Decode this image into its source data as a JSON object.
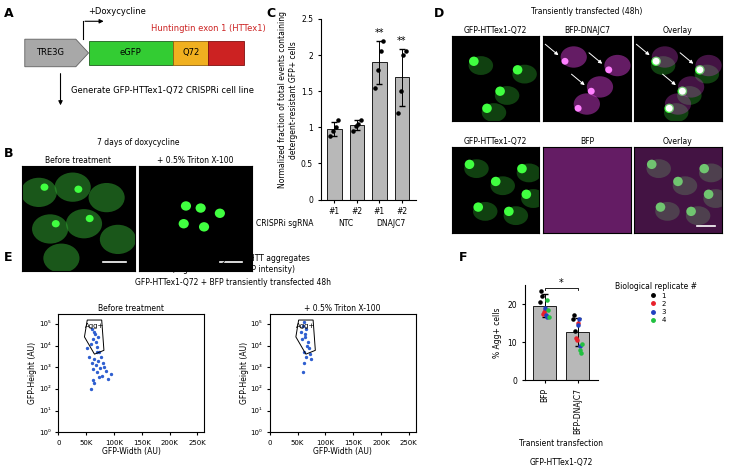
{
  "panel_labels": [
    "A",
    "B",
    "C",
    "D",
    "E",
    "F"
  ],
  "diagram": {
    "promoter": "TRE3G",
    "inducer": "+Doxycycline",
    "gene": "eGFP",
    "repeat": "Q72",
    "construct": "Huntingtin exon 1 (HTTex1)",
    "output": "Generate GFP-HTTex1-Q72 CRISPRi cell line"
  },
  "images_B": {
    "title": "7 days of doxycycline",
    "panels": [
      "Before treatment",
      "+ 0.5% Triton X-100"
    ]
  },
  "images_D": {
    "title": "Transiently transfected (48h)",
    "rows": [
      [
        "GFP-HTTex1-Q72",
        "BFP-DNAJC7",
        "Overlay"
      ],
      [
        "GFP-HTTex1-Q72",
        "BFP",
        "Overlay"
      ]
    ]
  },
  "panel_E": {
    "title": "Pulse-shape analysis of HTT aggregates",
    "subtitle": "(High and narrow GFP intensity)",
    "header": "GFP-HTTex1-Q72 + BFP transiently transfected 48h"
  },
  "chart_data": [
    {
      "type": "bar",
      "categories": [
        "#1",
        "#2",
        "#1",
        "#2"
      ],
      "group_labels": [
        "NTC",
        "NTC",
        "DNAJC7",
        "DNAJC7"
      ],
      "group_title": "CRISPRi sgRNA",
      "values": [
        0.98,
        1.03,
        1.9,
        1.69
      ],
      "errors": [
        0.1,
        0.07,
        0.3,
        0.4
      ],
      "points": [
        [
          0.88,
          0.95,
          1.0,
          1.1
        ],
        [
          0.95,
          1.02,
          1.05,
          1.1
        ],
        [
          1.55,
          1.8,
          2.05,
          2.2
        ],
        [
          1.2,
          1.5,
          2.0,
          2.05
        ]
      ],
      "significance": [
        null,
        null,
        "**",
        "**"
      ],
      "ylabel": "Normalized fraction of total events containing detergent-resistant GFP+ cells",
      "ylim": [
        0,
        2.5
      ],
      "yticks": [
        0,
        0.5,
        1,
        1.5,
        2,
        2.5
      ],
      "color": "#b8b8b8"
    },
    {
      "type": "scatter",
      "title": "Before treatment",
      "xlabel": "GFP-Width (AU)",
      "ylabel": "GFP-Height (AU)",
      "x": [
        55000,
        60000,
        62000,
        65000,
        68000,
        70000,
        72000,
        75000,
        78000,
        80000,
        85000,
        90000,
        58000,
        63000,
        66000,
        70000,
        74000,
        77000,
        82000,
        60000,
        64000,
        67000,
        71000,
        58000,
        62000,
        65000,
        69000,
        95000,
        52000,
        73000
      ],
      "y": [
        3000,
        1500,
        800,
        2500,
        1200,
        600,
        2000,
        900,
        400,
        1500,
        700,
        300,
        12000,
        20000,
        35000,
        9000,
        5000,
        3000,
        1000,
        60000,
        40000,
        15000,
        25000,
        100,
        250,
        180,
        5000,
        500,
        8000,
        350
      ],
      "color": "#2f5fd0",
      "log": "y",
      "gate": {
        "label": "Agg+",
        "x": [
          47000,
          52000,
          78000,
          82000,
          65000
        ],
        "y": [
          25000,
          150000,
          150000,
          6000,
          4000
        ]
      },
      "xlim": [
        0,
        262144
      ],
      "xticks": [
        0,
        {
          "value": 50000,
          "label": "50K"
        },
        {
          "value": 100000,
          "label": "100K"
        },
        {
          "value": 150000,
          "label": "150K"
        },
        {
          "value": 200000,
          "label": "200K"
        },
        {
          "value": 250000,
          "label": "250K"
        }
      ],
      "ylim": [
        1,
        300000
      ],
      "yticks": [
        {
          "value": 1,
          "label": "10⁰"
        },
        {
          "value": 10,
          "label": "10¹"
        },
        {
          "value": 100,
          "label": "10²"
        },
        {
          "value": 1000,
          "label": "10³"
        },
        {
          "value": 10000,
          "label": "10⁴"
        },
        {
          "value": 100000,
          "label": "10⁵"
        }
      ]
    },
    {
      "type": "scatter",
      "title": "+ 0.5% Triton X-100",
      "xlabel": "GFP-Width (AU)",
      "ylabel": "GFP-Height (AU)",
      "x": [
        56000,
        60000,
        63000,
        65000,
        68000,
        62000,
        66000,
        70000,
        58000,
        61000,
        64000,
        67000,
        72000,
        75000,
        60000,
        62000
      ],
      "y": [
        40000,
        80000,
        25000,
        60000,
        15000,
        5000,
        3000,
        8000,
        20000,
        120000,
        35000,
        10000,
        4000,
        2500,
        600,
        1500
      ],
      "color": "#2f5fd0",
      "log": "y",
      "gate": {
        "label": "Agg+",
        "x": [
          47000,
          52000,
          78000,
          82000,
          65000
        ],
        "y": [
          25000,
          150000,
          150000,
          6000,
          4000
        ]
      },
      "xlim": [
        0,
        262144
      ],
      "xticks": [
        0,
        {
          "value": 50000,
          "label": "50K"
        },
        {
          "value": 100000,
          "label": "100K"
        },
        {
          "value": 150000,
          "label": "150K"
        },
        {
          "value": 200000,
          "label": "200K"
        },
        {
          "value": 250000,
          "label": "250K"
        }
      ],
      "ylim": [
        1,
        300000
      ],
      "yticks": [
        {
          "value": 1,
          "label": "10⁰"
        },
        {
          "value": 10,
          "label": "10¹"
        },
        {
          "value": 100,
          "label": "10²"
        },
        {
          "value": 1000,
          "label": "10³"
        },
        {
          "value": 10000,
          "label": "10⁴"
        },
        {
          "value": 100000,
          "label": "10⁵"
        }
      ]
    },
    {
      "type": "bar",
      "categories": [
        "BFP",
        "BFP-DNAJC7"
      ],
      "values": [
        19.6,
        12.6
      ],
      "errors": [
        3.1,
        3.6
      ],
      "color": "#b8b8b8",
      "ylabel": "% Agg+ cells",
      "xlabel": "Transient transfection",
      "xlabel2": "GFP-HTTex1-Q72",
      "significance": "*",
      "legend_title": "Biological replicate #",
      "points": [
        {
          "name": "1",
          "color": "#000000",
          "values": [
            [
              20.5,
              23.5,
              22
            ],
            [
              16,
              17,
              13
            ]
          ]
        },
        {
          "name": "2",
          "color": "#e8202a",
          "values": [
            [
              17.5,
              18,
              18.5
            ],
            [
              11,
              10.5,
              15
            ]
          ]
        },
        {
          "name": "3",
          "color": "#2040c0",
          "values": [
            [
              19,
              17,
              16.5
            ],
            [
              14.5,
              16,
              9
            ]
          ]
        },
        {
          "name": "4",
          "color": "#20c040",
          "values": [
            [
              21,
              18.5,
              16.5
            ],
            [
              8,
              7,
              9.5
            ]
          ]
        }
      ],
      "ylim": [
        0,
        25
      ],
      "yticks": [
        0,
        10,
        20
      ]
    }
  ]
}
